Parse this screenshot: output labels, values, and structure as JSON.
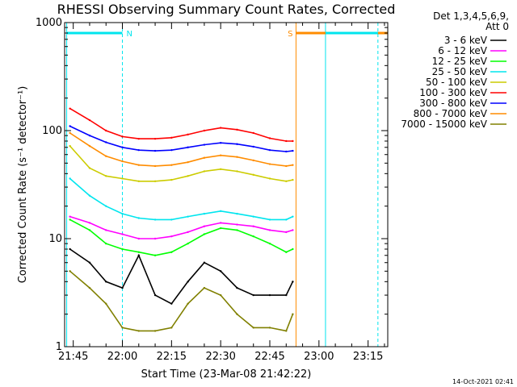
{
  "chart_data": {
    "type": "line",
    "title": "RHESSI Observing Summary Count Rates, Corrected",
    "xlabel": "Start Time (23-Mar-08 21:42:22)",
    "ylabel": "Corrected Count Rate (s⁻¹ detector⁻¹)",
    "y_scale": "log",
    "ylim": [
      1,
      1000
    ],
    "xlim": [
      "21:42:22",
      "23:21:00"
    ],
    "x_ticks": [
      "21:45",
      "22:00",
      "22:15",
      "22:30",
      "22:45",
      "23:00",
      "23:15"
    ],
    "y_ticks": [
      "1",
      "10",
      "100",
      "1000"
    ],
    "grid": false,
    "legend_position": "right",
    "legend_header": [
      "Det 1,3,4,5,6,9,",
      "Att 0"
    ],
    "footer_date": "14-Oct-2021 02:41",
    "flags": [
      {
        "label": "N",
        "color": "#00e5ee",
        "start": "21:43",
        "end": "22:00"
      },
      {
        "label": "S",
        "color": "#ff8c00",
        "start": "22:53",
        "end": "23:21"
      },
      {
        "label": "",
        "color": "#00e5ee",
        "start": "23:02",
        "end": "23:18"
      }
    ],
    "markers": [
      {
        "time": "21:43",
        "color": "#00e5ee",
        "style": "solid"
      },
      {
        "time": "22:00",
        "color": "#00e5ee",
        "style": "dashed"
      },
      {
        "time": "22:53",
        "color": "#ff8c00",
        "style": "solid"
      },
      {
        "time": "23:02",
        "color": "#00e5ee",
        "style": "solid"
      },
      {
        "time": "23:18",
        "color": "#00e5ee",
        "style": "dashed"
      }
    ],
    "x": [
      "21:44",
      "21:50",
      "21:55",
      "22:00",
      "22:05",
      "22:10",
      "22:15",
      "22:20",
      "22:25",
      "22:30",
      "22:35",
      "22:40",
      "22:45",
      "22:50",
      "22:52"
    ],
    "series": [
      {
        "name": "3 - 6 keV",
        "color": "#000000",
        "values": [
          8,
          6,
          4,
          3.5,
          7,
          3,
          2.5,
          4,
          6,
          5,
          3.5,
          3,
          3,
          3,
          4
        ]
      },
      {
        "name": "6 - 12 keV",
        "color": "#ff00ff",
        "values": [
          16,
          14,
          12,
          11,
          10,
          10,
          10.5,
          11.5,
          13,
          14,
          13.5,
          13,
          12,
          11.5,
          12
        ]
      },
      {
        "name": "12 - 25 keV",
        "color": "#00ff00",
        "values": [
          15,
          12,
          9,
          8,
          7.5,
          7,
          7.5,
          9,
          11,
          12.5,
          12,
          10.5,
          9,
          7.5,
          8
        ]
      },
      {
        "name": "25 - 50 keV",
        "color": "#00e5ee",
        "values": [
          36,
          25,
          20,
          17,
          15.5,
          15,
          15,
          16,
          17,
          18,
          17,
          16,
          15,
          15,
          16
        ]
      },
      {
        "name": "50 - 100 keV",
        "color": "#cccc00",
        "values": [
          72,
          45,
          38,
          36,
          34,
          34,
          35,
          38,
          42,
          44,
          42,
          39,
          36,
          34,
          35
        ]
      },
      {
        "name": "100 - 300 keV",
        "color": "#ff0000",
        "values": [
          160,
          125,
          100,
          88,
          84,
          84,
          86,
          92,
          100,
          106,
          102,
          95,
          85,
          80,
          80
        ]
      },
      {
        "name": "300 - 800 keV",
        "color": "#0000ff",
        "values": [
          110,
          90,
          78,
          70,
          66,
          65,
          66,
          70,
          74,
          77,
          75,
          71,
          66,
          64,
          65
        ]
      },
      {
        "name": "800 - 7000 keV",
        "color": "#ff8c00",
        "values": [
          95,
          72,
          58,
          52,
          48,
          47,
          48,
          51,
          56,
          59,
          57,
          53,
          49,
          47,
          48
        ]
      },
      {
        "name": "7000 - 15000 keV",
        "color": "#808000",
        "values": [
          5,
          3.5,
          2.5,
          1.5,
          1.4,
          1.4,
          1.5,
          2.5,
          3.5,
          3,
          2,
          1.5,
          1.5,
          1.4,
          2
        ]
      }
    ]
  }
}
